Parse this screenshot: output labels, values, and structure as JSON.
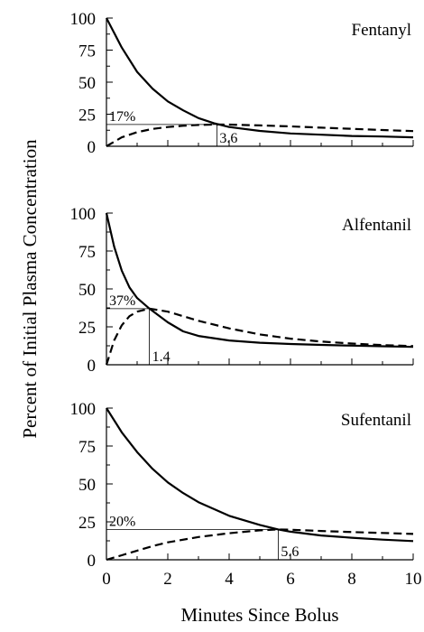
{
  "chart_data": {
    "type": "line",
    "ylabel": "Percent of Initial Plasma Concentration",
    "xlabel": "Minutes Since Bolus",
    "x_ticks": [
      0,
      2,
      4,
      6,
      8,
      10
    ],
    "y_ticks": [
      0,
      25,
      50,
      75,
      100
    ],
    "xlim": [
      0,
      10
    ],
    "ylim": [
      0,
      100
    ],
    "legend": "none",
    "grid": false,
    "panels": [
      {
        "title": "Fentanyl",
        "series": [
          {
            "style": "solid",
            "x": [
              0,
              0.5,
              1,
              1.5,
              2,
              2.5,
              3,
              3.5,
              4,
              5,
              6,
              7,
              8,
              9,
              10
            ],
            "y": [
              100,
              77,
              58,
              45,
              35,
              28,
              22,
              18,
              15,
              12,
              10,
              9,
              8,
              7.6,
              7
            ]
          },
          {
            "style": "dashed",
            "x": [
              0,
              0.5,
              1,
              1.5,
              2,
              2.5,
              3,
              3.6,
              4,
              5,
              6,
              7,
              8,
              9,
              10
            ],
            "y": [
              0,
              7,
              11,
              13.5,
              15,
              16,
              16.6,
              17,
              16.9,
              16.3,
              15.5,
              14.5,
              13.6,
              12.7,
              11.8
            ]
          }
        ],
        "peak_label": "17%",
        "peak_value": 17,
        "time_label": "3.6",
        "time_value": 3.6
      },
      {
        "title": "Alfentanil",
        "series": [
          {
            "style": "solid",
            "x": [
              0,
              0.25,
              0.5,
              0.75,
              1,
              1.4,
              2,
              2.5,
              3,
              4,
              5,
              6,
              7,
              8,
              9,
              10
            ],
            "y": [
              100,
              78,
              62,
              51,
              44,
              37,
              28,
              22,
              19,
              16,
              14.5,
              13.7,
              13.1,
              12.6,
              12.2,
              11.8
            ]
          },
          {
            "style": "dashed",
            "x": [
              0,
              0.25,
              0.5,
              0.75,
              1,
              1.4,
              2,
              2.5,
              3,
              4,
              5,
              6,
              7,
              8,
              9,
              10
            ],
            "y": [
              0,
              16,
              26,
              32,
              35,
              37,
              35,
              32,
              29,
              24,
              20,
              17.2,
              15.3,
              14,
              13,
              12.3
            ]
          }
        ],
        "peak_label": "37%",
        "peak_value": 37,
        "time_label": "1.4",
        "time_value": 1.4
      },
      {
        "title": "Sufentanil",
        "series": [
          {
            "style": "solid",
            "x": [
              0,
              0.5,
              1,
              1.5,
              2,
              2.5,
              3,
              4,
              5,
              5.6,
              6,
              7,
              8,
              9,
              10
            ],
            "y": [
              100,
              84,
              71,
              60,
              51,
              44,
              38,
              29,
              23,
              20,
              18.5,
              16,
              14.5,
              13.3,
              12.3
            ]
          },
          {
            "style": "dashed",
            "x": [
              0,
              0.5,
              1,
              1.5,
              2,
              3,
              4,
              5,
              5.6,
              6,
              7,
              8,
              9,
              10
            ],
            "y": [
              0,
              3,
              6,
              9,
              11.5,
              15,
              17.5,
              19.4,
              20,
              19.8,
              19,
              18.3,
              17.7,
              17
            ]
          }
        ],
        "peak_label": "20%",
        "peak_value": 20,
        "time_label": "5.6",
        "time_value": 5.6
      }
    ]
  }
}
